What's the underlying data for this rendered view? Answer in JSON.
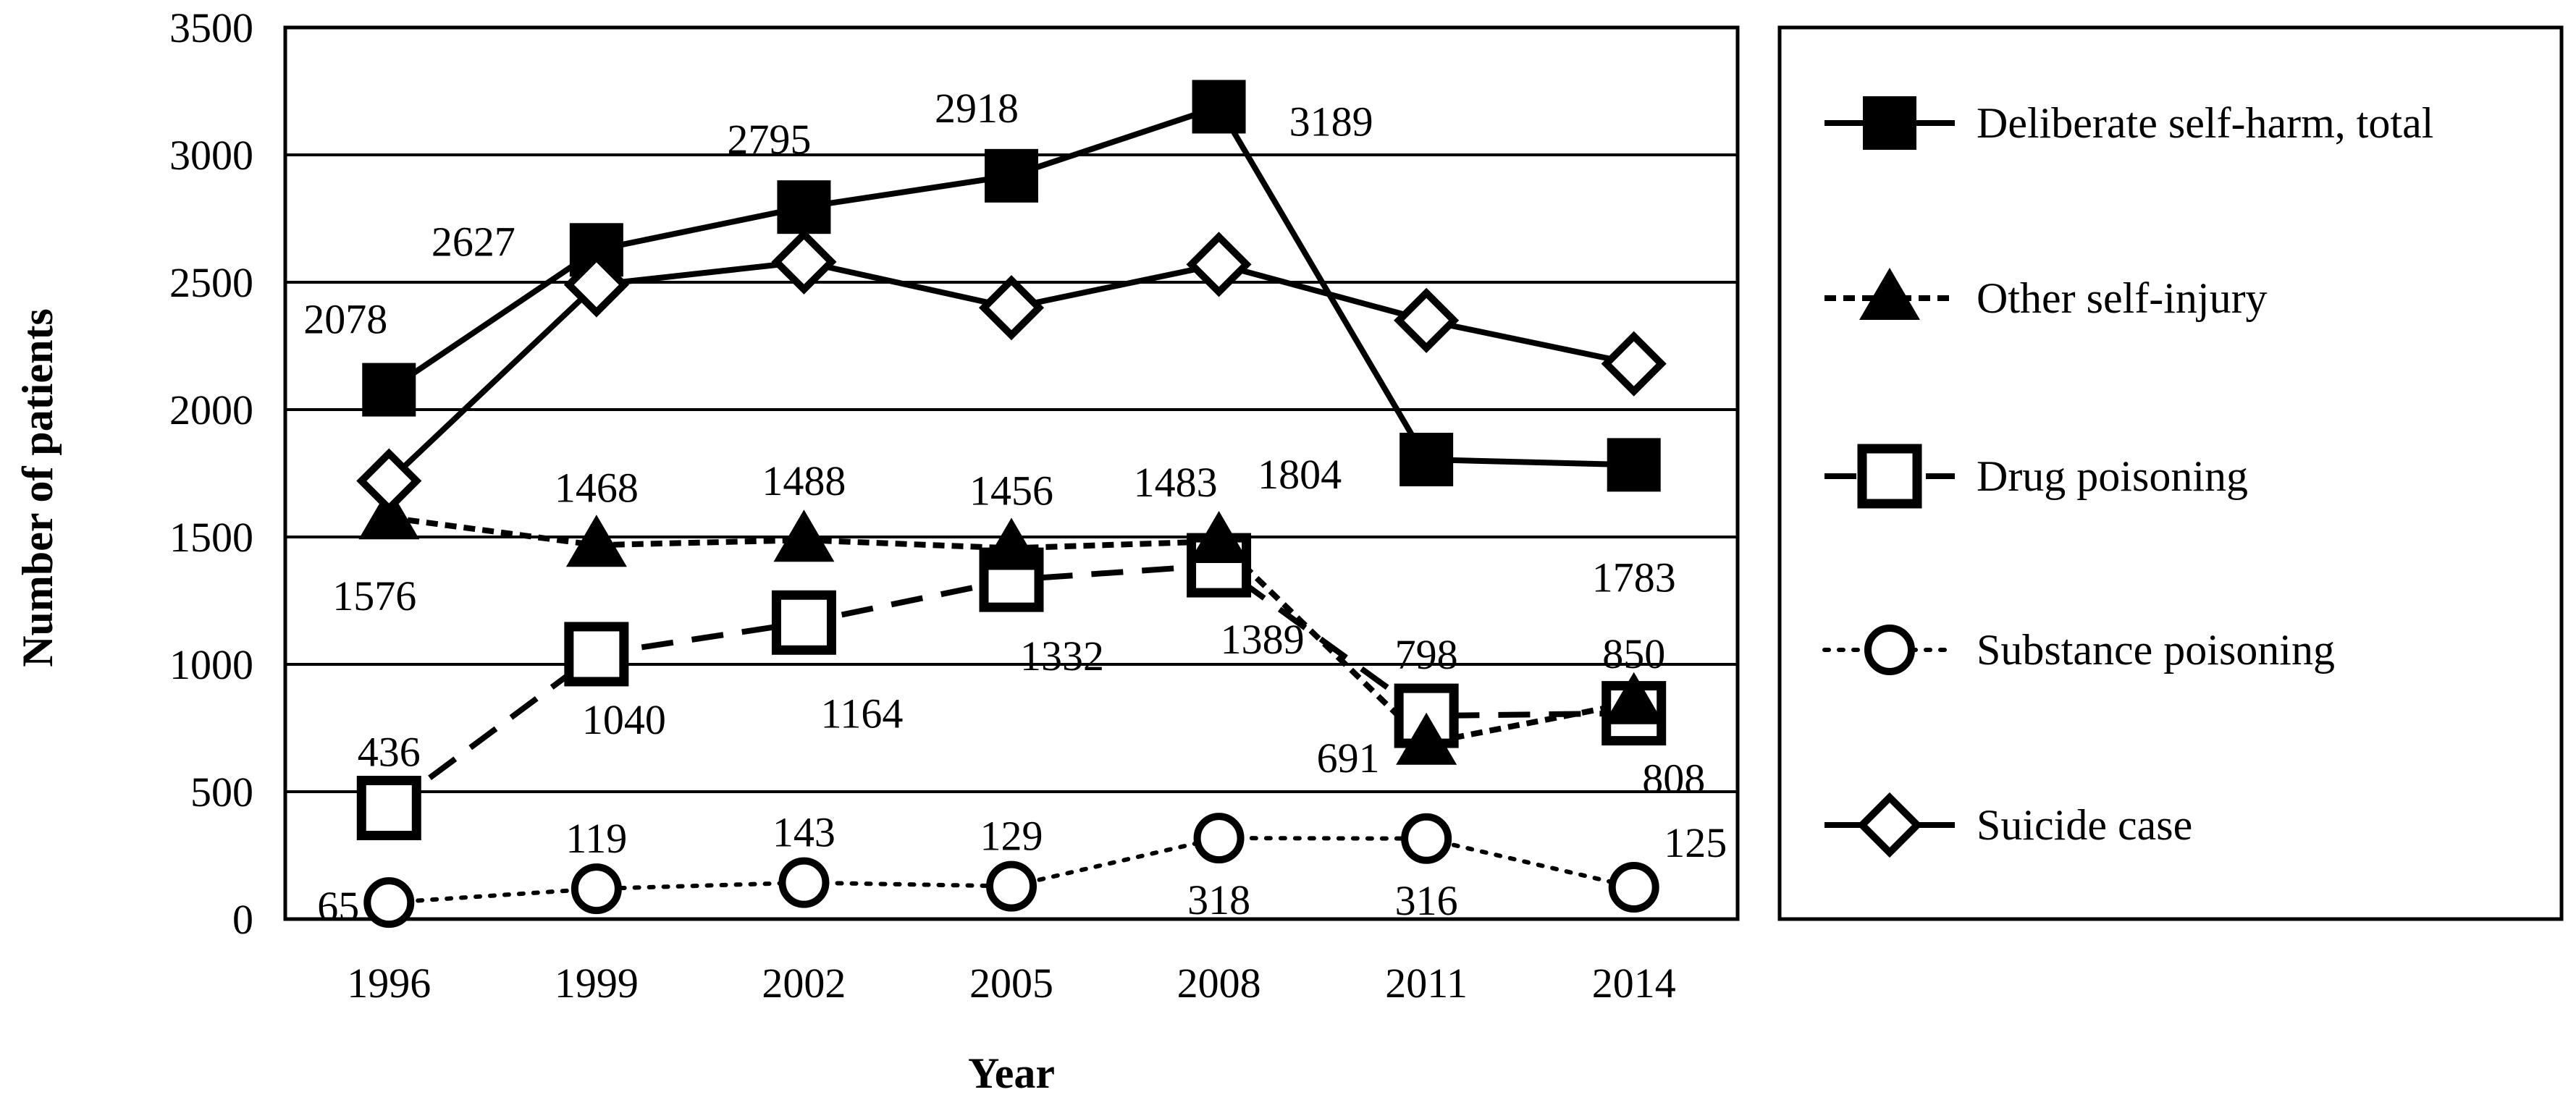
{
  "chart_data": {
    "type": "line",
    "title": "",
    "xlabel": "Year",
    "ylabel": "Number  of patients",
    "categories": [
      "1996",
      "1999",
      "2002",
      "2005",
      "2008",
      "2011",
      "2014"
    ],
    "ylim": [
      0,
      3500
    ],
    "yticks": [
      "0",
      "500",
      "1000",
      "1500",
      "2000",
      "2500",
      "3000",
      "3500"
    ],
    "grid": "horizontal",
    "legend_position": "right",
    "series": [
      {
        "name": "Deliberate self-harm, total",
        "values": [
          2078,
          2627,
          2795,
          2918,
          3189,
          1804,
          1783
        ],
        "labels": [
          "2078",
          "2627",
          "2795",
          "2918",
          "3189",
          "1804",
          "1783"
        ],
        "line": "solid",
        "marker": "filled-square"
      },
      {
        "name": "Other self-injury",
        "values": [
          1576,
          1468,
          1488,
          1456,
          1483,
          691,
          850
        ],
        "labels": [
          "1576",
          "1468",
          "1488",
          "1456",
          "1483",
          "691",
          "850"
        ],
        "line": "short-dash",
        "marker": "filled-triangle"
      },
      {
        "name": "Drug poisoning",
        "values": [
          436,
          1040,
          1164,
          1332,
          1389,
          798,
          808
        ],
        "labels": [
          "436",
          "1040",
          "1164",
          "1332",
          "1389",
          "798",
          "808"
        ],
        "line": "long-dash",
        "marker": "open-square"
      },
      {
        "name": "Substance poisoning",
        "values": [
          65,
          119,
          143,
          129,
          318,
          316,
          125
        ],
        "labels": [
          "65",
          "119",
          "143",
          "129",
          "318",
          "316",
          "125"
        ],
        "line": "dotted",
        "marker": "open-circle"
      },
      {
        "name": "Suicide case",
        "values": [
          1720,
          2490,
          2580,
          2400,
          2570,
          2350,
          2180
        ],
        "line": "solid",
        "marker": "open-diamond"
      }
    ]
  },
  "colors": {
    "line": "#000000",
    "background": "#ffffff"
  }
}
